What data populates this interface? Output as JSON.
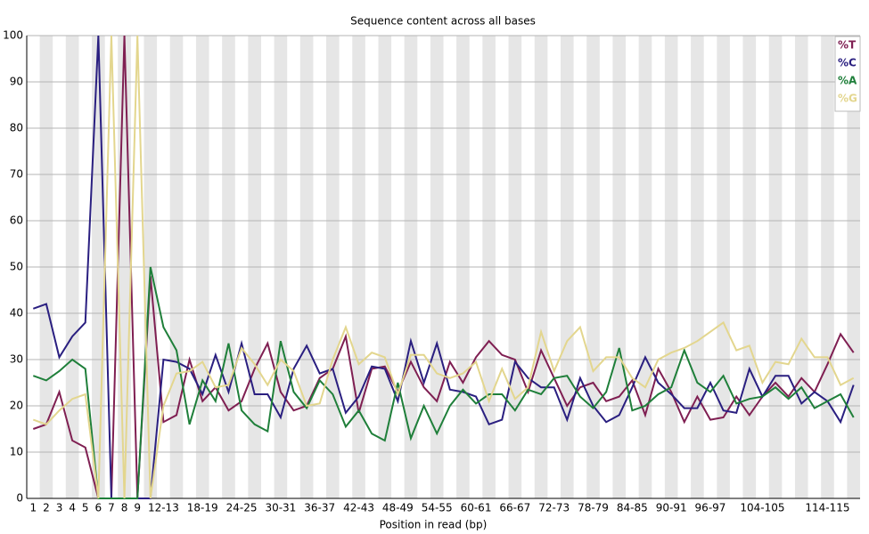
{
  "chart_data": {
    "type": "line",
    "title": "Sequence content across all bases",
    "x_label": "Position in read (bp)",
    "categories": [
      "1",
      "2",
      "3",
      "4",
      "5",
      "6",
      "7",
      "8",
      "9",
      null,
      "12-13",
      null,
      null,
      "18-19",
      null,
      null,
      "24-25",
      null,
      null,
      "30-31",
      null,
      null,
      "36-37",
      null,
      null,
      "42-43",
      null,
      null,
      "48-49",
      null,
      null,
      "54-55",
      null,
      null,
      "60-61",
      null,
      null,
      "66-67",
      null,
      null,
      "72-73",
      null,
      null,
      "78-79",
      null,
      null,
      "84-85",
      null,
      null,
      "90-91",
      null,
      null,
      "96-97",
      null,
      null,
      null,
      "104-105",
      null,
      null,
      null,
      null,
      "114-115",
      null,
      null
    ],
    "series": [
      {
        "name": "%T",
        "color": "#7f1f52",
        "values": [
          15,
          16,
          23,
          12.5,
          11,
          0,
          0,
          100,
          0,
          48,
          16.5,
          18,
          30,
          21,
          24,
          19,
          21,
          28,
          33.5,
          23,
          19,
          20,
          26,
          28,
          35,
          18.5,
          28,
          28.5,
          23,
          29.5,
          24,
          21,
          29.5,
          25,
          30.5,
          34,
          31,
          30,
          23,
          32,
          26,
          20,
          24,
          25,
          21,
          22,
          25.5,
          18,
          28,
          23,
          16.5,
          22,
          17,
          17.5,
          22,
          18,
          22,
          25,
          22,
          26,
          23,
          29,
          35.5,
          31.5
        ]
      },
      {
        "name": "%C",
        "color": "#2a1f80",
        "values": [
          41,
          42,
          30.5,
          35,
          38,
          100,
          0,
          0,
          0,
          0,
          30,
          29.5,
          28,
          22.5,
          31,
          23,
          33.5,
          22.5,
          22.5,
          17.5,
          28,
          33,
          27,
          28,
          18.5,
          22,
          28.5,
          28,
          21,
          34,
          25,
          33.5,
          23.5,
          23,
          22,
          16,
          17,
          29.5,
          26,
          24,
          24,
          17,
          26,
          20,
          16.5,
          18,
          24,
          30.5,
          25,
          22.5,
          19.5,
          19.5,
          25,
          19,
          18.5,
          28,
          22,
          26.5,
          26.5,
          20.5,
          23,
          21,
          16.5,
          24.5
        ]
      },
      {
        "name": "%A",
        "color": "#1f7f3a",
        "values": [
          26.5,
          25.5,
          27.5,
          30,
          28,
          0,
          0,
          0,
          0,
          50,
          37,
          32,
          16,
          25.5,
          21,
          33.5,
          19,
          16,
          14.5,
          34,
          23,
          19.5,
          25.5,
          22.5,
          15.5,
          19,
          14,
          12.5,
          25,
          13,
          20,
          14,
          20,
          23.5,
          20.5,
          22.5,
          22.5,
          19,
          23.5,
          22.5,
          26,
          26.5,
          22,
          19.5,
          23,
          32.5,
          19,
          20,
          22.5,
          24,
          32,
          25,
          23,
          26.5,
          20.5,
          21.5,
          22,
          24,
          21.5,
          24,
          19.5,
          21,
          22.5,
          17.5
        ]
      },
      {
        "name": "%G",
        "color": "#e3d68e",
        "values": [
          17,
          16,
          19,
          21.5,
          22.5,
          0,
          100,
          0,
          100,
          0,
          20,
          27,
          27.5,
          29.5,
          24,
          24.5,
          32.5,
          29,
          24.5,
          30,
          27.5,
          20,
          20.5,
          30,
          37,
          29,
          31.5,
          30.5,
          22.5,
          31,
          31,
          27,
          26,
          27,
          29.5,
          21,
          28,
          21.5,
          24,
          36,
          27.5,
          34,
          37,
          27.5,
          30.5,
          30.5,
          26,
          24,
          30,
          31.5,
          32.5,
          34,
          36,
          38,
          32,
          33,
          25,
          29.5,
          29,
          34.5,
          30.5,
          30.5,
          24.5,
          26
        ]
      }
    ],
    "ylim": [
      0,
      100
    ],
    "yticks": [
      0,
      10,
      20,
      30,
      40,
      50,
      60,
      70,
      80,
      90,
      100
    ],
    "grid": true,
    "legend": "top-right"
  }
}
